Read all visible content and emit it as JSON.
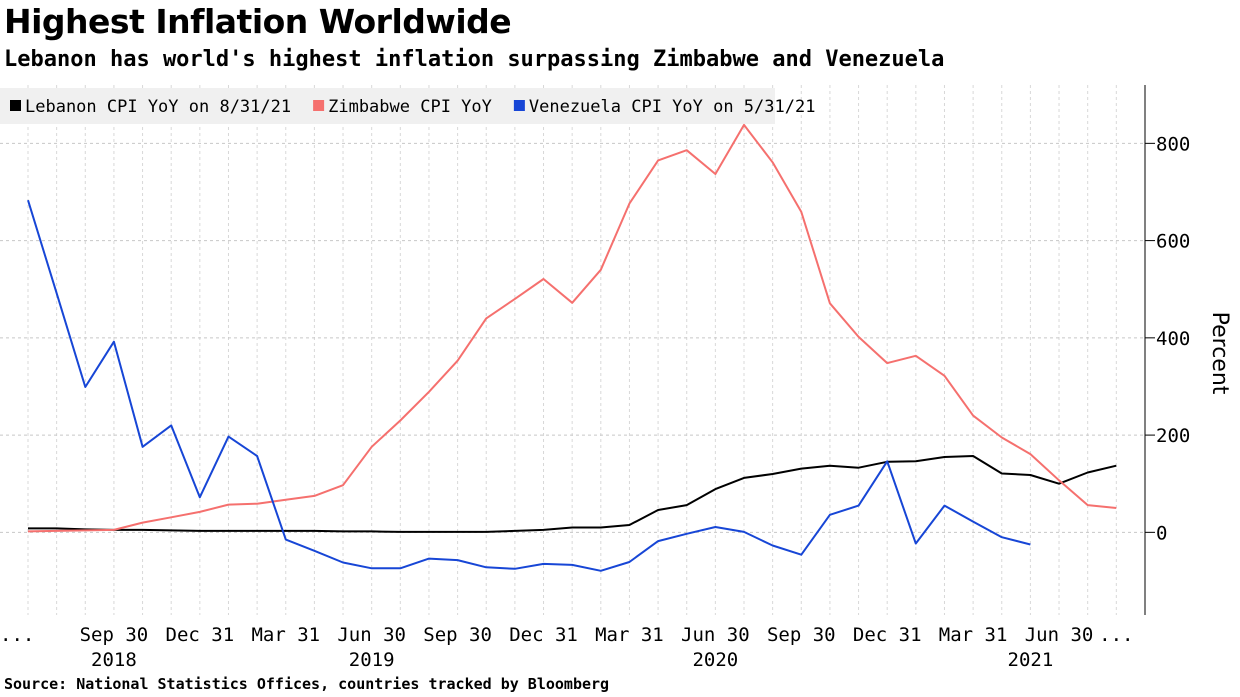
{
  "header": {
    "title": "Highest Inflation Worldwide",
    "subtitle": "Lebanon has world's highest inflation surpassing Zimbabwe and Venezuela"
  },
  "footer": {
    "source": "Source: National Statistics Offices, countries tracked by Bloomberg"
  },
  "chart_data": {
    "type": "line",
    "title": "Highest Inflation Worldwide",
    "subtitle": "Lebanon has world's highest inflation surpassing Zimbabwe and Venezuela",
    "xlabel": "",
    "ylabel": "Percent",
    "ylim": [
      -170,
      920
    ],
    "y_ticks": [
      0,
      200,
      400,
      600,
      800
    ],
    "y_axis_side": "right",
    "grid": true,
    "legend_position": "top-left",
    "x": [
      "2018-06-30",
      "2018-07-31",
      "2018-08-31",
      "2018-09-30",
      "2018-10-31",
      "2018-11-30",
      "2018-12-31",
      "2019-01-31",
      "2019-02-28",
      "2019-03-31",
      "2019-04-30",
      "2019-05-31",
      "2019-06-30",
      "2019-07-31",
      "2019-08-31",
      "2019-09-30",
      "2019-10-31",
      "2019-11-30",
      "2019-12-31",
      "2020-01-31",
      "2020-02-29",
      "2020-03-31",
      "2020-04-30",
      "2020-05-31",
      "2020-06-30",
      "2020-07-31",
      "2020-08-31",
      "2020-09-30",
      "2020-10-31",
      "2020-11-30",
      "2020-12-31",
      "2021-01-31",
      "2021-02-28",
      "2021-03-31",
      "2021-04-30",
      "2021-05-31",
      "2021-06-30",
      "2021-07-31",
      "2021-08-31"
    ],
    "x_tick_labels": [
      {
        "date": "2018-06-30",
        "label": "..."
      },
      {
        "date": "2018-09-30",
        "label": "Sep 30"
      },
      {
        "date": "2018-12-31",
        "label": "Dec 31"
      },
      {
        "date": "2019-03-31",
        "label": "Mar 31"
      },
      {
        "date": "2019-06-30",
        "label": "Jun 30"
      },
      {
        "date": "2019-09-30",
        "label": "Sep 30"
      },
      {
        "date": "2019-12-31",
        "label": "Dec 31"
      },
      {
        "date": "2020-03-31",
        "label": "Mar 31"
      },
      {
        "date": "2020-06-30",
        "label": "Jun 30"
      },
      {
        "date": "2020-09-30",
        "label": "Sep 30"
      },
      {
        "date": "2020-12-31",
        "label": "Dec 31"
      },
      {
        "date": "2021-03-31",
        "label": "Mar 31"
      },
      {
        "date": "2021-06-30",
        "label": "Jun 30"
      },
      {
        "date": "2021-08-31",
        "label": "..."
      }
    ],
    "year_labels": [
      {
        "date": "2018-09-30",
        "label": "2018"
      },
      {
        "date": "2019-06-30",
        "label": "2019"
      },
      {
        "date": "2020-06-30",
        "label": "2020"
      },
      {
        "date": "2021-05-31",
        "label": "2021"
      }
    ],
    "series": [
      {
        "name": "Lebanon CPI YoY on 8/31/21",
        "color": "#000000",
        "values": [
          8,
          8,
          6,
          5,
          5,
          4,
          3,
          3,
          3,
          3,
          3,
          2,
          2,
          1,
          1,
          1,
          1,
          3,
          5,
          10,
          10,
          15,
          46,
          56,
          89,
          112,
          120,
          131,
          137,
          133,
          145,
          146,
          155,
          157,
          121,
          118,
          100,
          123,
          137
        ]
      },
      {
        "name": "Zimbabwe CPI YoY",
        "color": "#f5706e",
        "values": [
          2,
          3,
          4,
          5,
          20,
          31,
          42,
          57,
          59,
          67,
          75,
          97,
          176,
          230,
          289,
          353,
          440,
          480,
          521,
          472,
          540,
          676,
          765,
          786,
          737,
          838,
          761,
          659,
          471,
          402,
          348,
          363,
          322,
          240,
          195,
          161,
          107,
          56,
          50
        ]
      },
      {
        "name": "Venezuela CPI YoY on 5/31/21",
        "color": "#1746d6",
        "values": [
          683,
          492,
          299,
          392,
          176,
          220,
          72,
          197,
          157,
          -15,
          -38,
          -62,
          -74,
          -74,
          -54,
          -57,
          -72,
          -75,
          -65,
          -67,
          -79,
          -61,
          -18,
          -3,
          11,
          1,
          -27,
          -46,
          36,
          55,
          146,
          -23,
          55,
          22,
          -10,
          -25,
          null,
          null,
          null
        ]
      }
    ]
  }
}
